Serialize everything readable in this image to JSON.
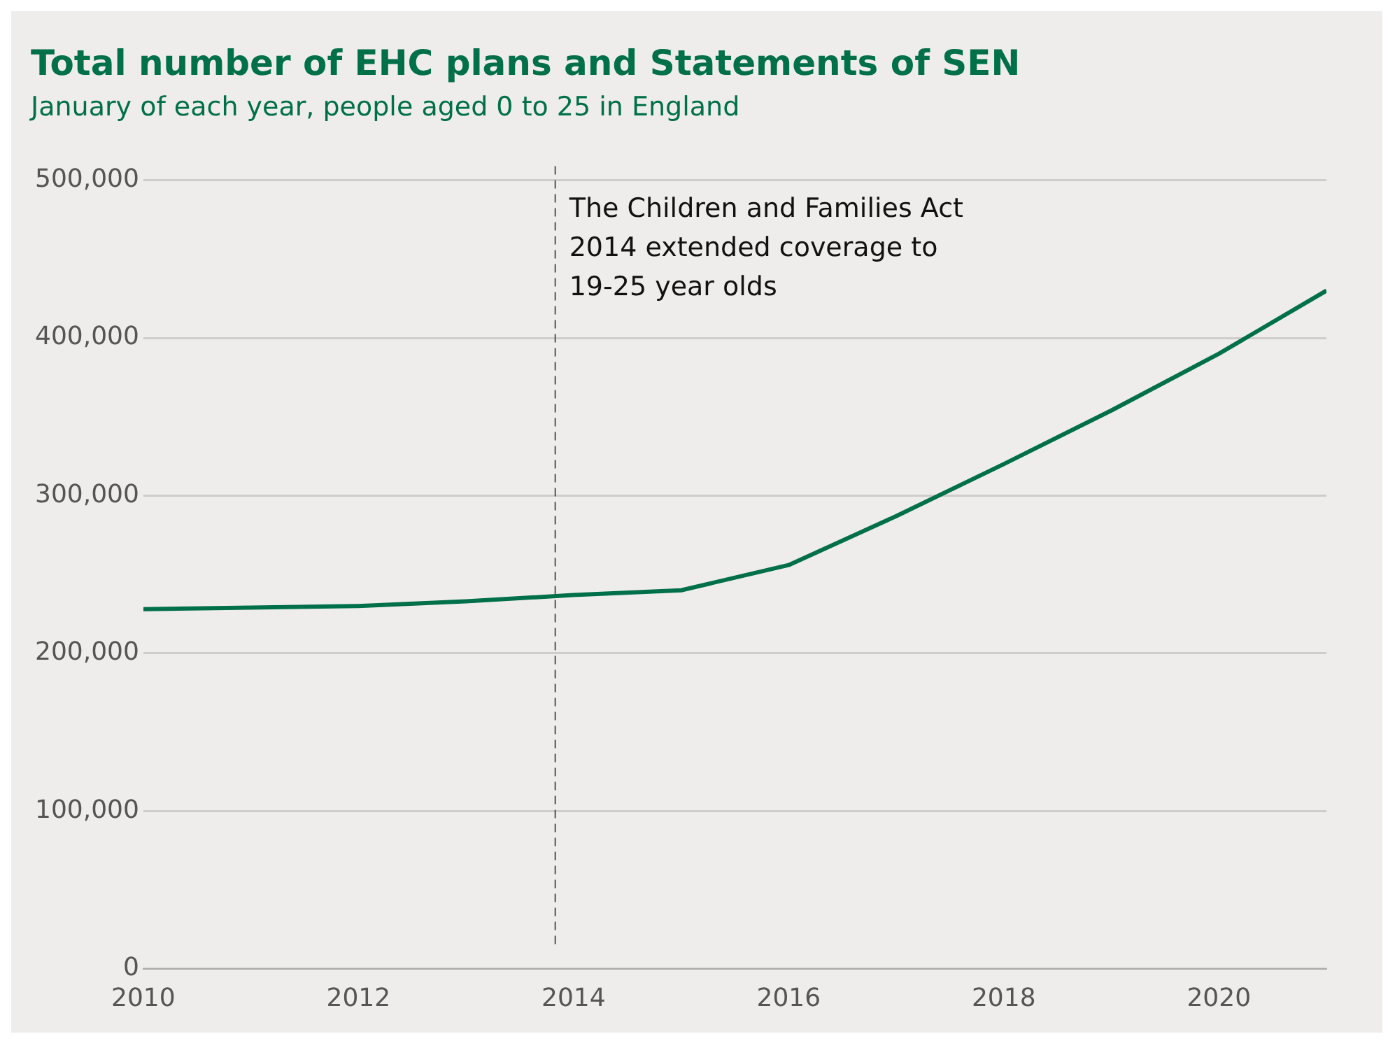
{
  "chart_data": {
    "type": "line",
    "title": "Total number of EHC plans and Statements of SEN",
    "subtitle": "January of each year, people aged 0 to 25 in England",
    "x": [
      2010,
      2011,
      2012,
      2013,
      2014,
      2015,
      2016,
      2017,
      2018,
      2019,
      2020,
      2021
    ],
    "series": [
      {
        "color": "#00704a",
        "values": [
          228000,
          229000,
          230000,
          233000,
          237000,
          240000,
          256000,
          287000,
          320000,
          354000,
          390000,
          430000
        ]
      }
    ],
    "xlim": [
      2010,
      2021
    ],
    "xticks": [
      2010,
      2012,
      2014,
      2016,
      2018,
      2020
    ],
    "ylim": [
      0,
      500000
    ],
    "yticks": [
      {
        "value": 0,
        "label": "0"
      },
      {
        "value": 100000,
        "label": "100,000"
      },
      {
        "value": 200000,
        "label": "200,000"
      },
      {
        "value": 300000,
        "label": "300,000"
      },
      {
        "value": 400000,
        "label": "400,000"
      },
      {
        "value": 500000,
        "label": "500,000"
      }
    ],
    "ref_lines": [
      {
        "axis": "x",
        "value": 2013.83,
        "label": "The Children and Families Act 2014 extended coverage to 19-25 year olds",
        "color": "#555555",
        "line_style": "dashed"
      }
    ],
    "grid": "y",
    "legend": false,
    "marker": "none",
    "line_style": "solid"
  }
}
